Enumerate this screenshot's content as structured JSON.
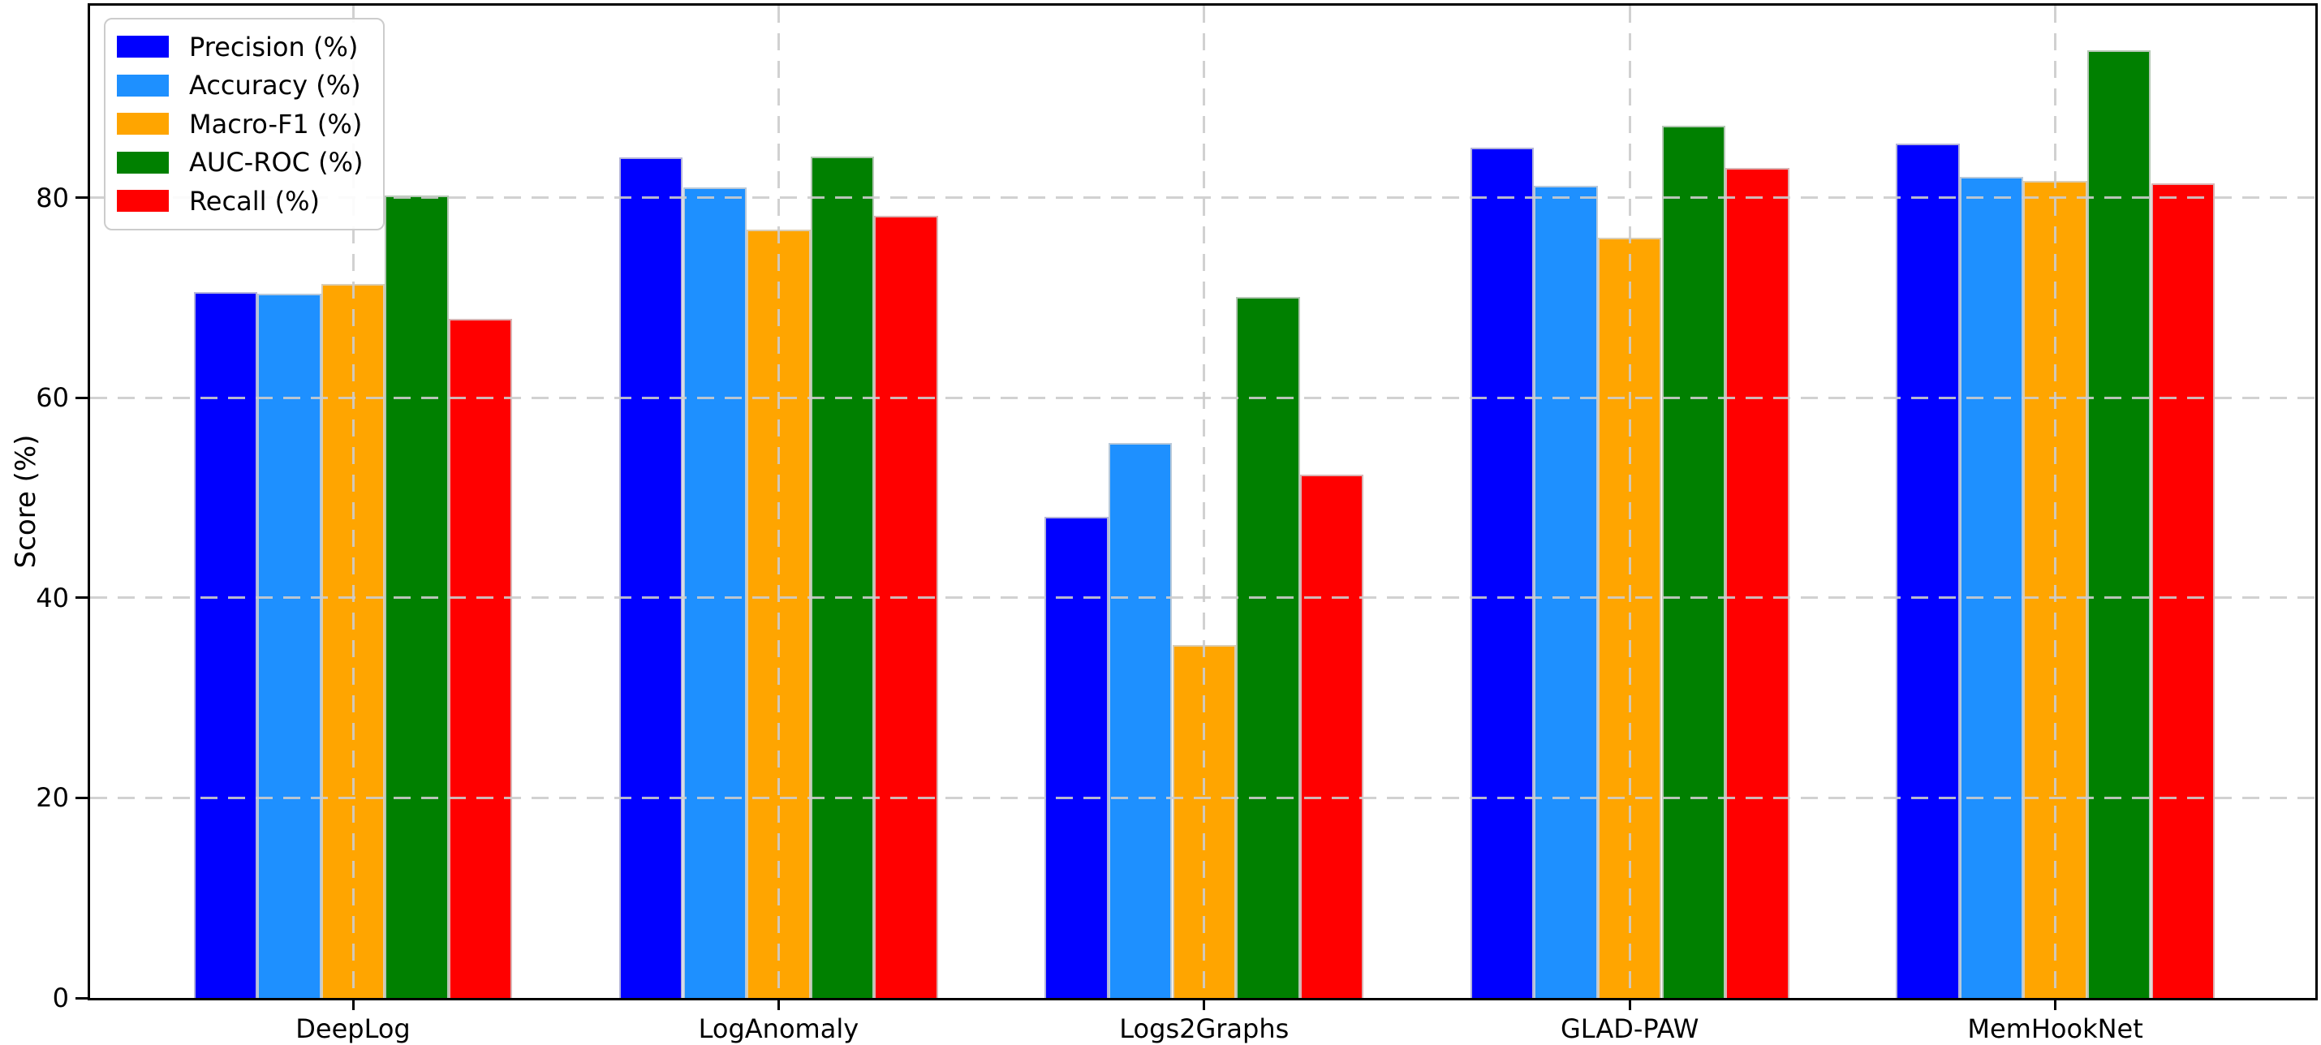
{
  "chart_data": {
    "type": "bar",
    "title": "",
    "xlabel": "",
    "ylabel": "Score (%)",
    "categories": [
      "DeepLog",
      "LogAnomaly",
      "Logs2Graphs",
      "GLAD-PAW",
      "MemHookNet"
    ],
    "series": [
      {
        "name": "Precision (%)",
        "color": "#0000ff",
        "values": [
          70.6,
          84.0,
          48.1,
          85.0,
          85.4
        ]
      },
      {
        "name": "Accuracy (%)",
        "color": "#1e90ff",
        "values": [
          70.4,
          81.0,
          55.5,
          81.2,
          82.1
        ]
      },
      {
        "name": "Macro-F1 (%)",
        "color": "#ffa500",
        "values": [
          71.4,
          76.8,
          35.3,
          76.0,
          81.7
        ]
      },
      {
        "name": "AUC-ROC (%)",
        "color": "#008000",
        "values": [
          80.2,
          84.1,
          70.1,
          87.2,
          94.7
        ]
      },
      {
        "name": "Recall (%)",
        "color": "#ff0000",
        "values": [
          67.9,
          78.2,
          52.3,
          83.0,
          81.4
        ]
      }
    ],
    "yticks": [
      0,
      20,
      40,
      60,
      80
    ],
    "ylim": [
      0,
      99.2
    ],
    "grid": {
      "linestyle": "dashed",
      "color": "#cccccc",
      "above_bars": true,
      "axes": "both"
    },
    "legend": {
      "position": "upper-left",
      "entries": [
        "Precision (%)",
        "Accuracy (%)",
        "Macro-F1 (%)",
        "AUC-ROC (%)",
        "Recall (%)"
      ]
    },
    "bar_edge_color": "#d3d3d3",
    "spine_color": "#000000"
  }
}
